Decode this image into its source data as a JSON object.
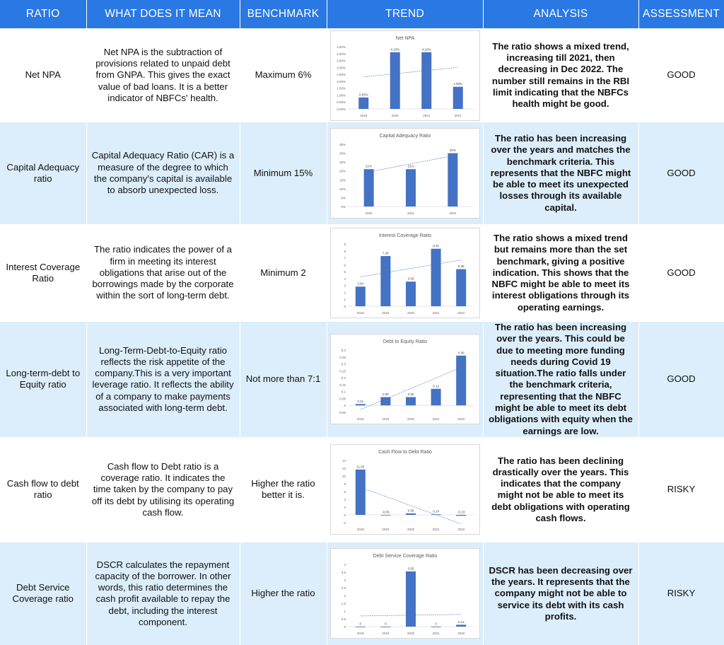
{
  "headers": [
    "RATIO",
    "WHAT DOES IT MEAN",
    "BENCHMARK",
    "TREND",
    "ANALYSIS",
    "ASSESSMENT"
  ],
  "rows": [
    {
      "ratio": "Net NPA",
      "meaning": "Net NPA is the subtraction of provisions related to unpaid debt from GNPA. This gives the exact value of bad loans. It is a better indicator of NBFCs' health.",
      "benchmark": "Maximum 6%",
      "analysis": "The ratio shows a mixed trend, increasing till 2021, then decreasing in Dec 2022. The number still remains in the RBI limit indicating that the NBFCs health might be good.",
      "assessment": "GOOD"
    },
    {
      "ratio": "Capital Adequacy ratio",
      "meaning": "Capital Adequacy Ratio (CAR) is a measure of the degree to which the company's capital is available to absorb unexpected loss.",
      "benchmark": "Minimum 15%",
      "analysis": "The ratio has been increasing over the years and matches the benchmark criteria. This represents that the NBFC might be able to meet its unexpected losses through its available capital.",
      "assessment": "GOOD"
    },
    {
      "ratio": "Interest Coverage Ratio",
      "meaning": "The ratio indicates the power of a firm in meeting its interest obligations that arise out of the borrowings made by the corporate within the sort of long-term debt.",
      "benchmark": "Minimum 2",
      "analysis": "The ratio shows a mixed trend but remains more than the set benchmark, giving a positive indication. This shows that the NBFC might be able to meet its interest obligations through its operating earnings.",
      "assessment": "GOOD"
    },
    {
      "ratio": "Long-term-debt to Equity ratio",
      "meaning": "Long-Term-Debt-to-Equity ratio reflects the risk appetite of the company.This is a very important leverage ratio. It reflects the ability of a company to make payments associated with long-term debt.",
      "benchmark": "Not more than 7:1",
      "analysis": "The ratio has been increasing over the years. This could be due to meeting more funding needs during Covid 19 situation.The ratio falls under the benchmark criteria, representing that the NBFC might be able to meet its debt obligations with equity when the earnings are low.",
      "assessment": "GOOD"
    },
    {
      "ratio": "Cash flow to debt ratio",
      "meaning": "Cash flow to Debt ratio is a coverage ratio. It indicates the time taken by the company to pay off its debt by utilising its operating cash flow.",
      "benchmark": "Higher the ratio better it is.",
      "analysis": "The ratio has been declining drastically over the years. This indicates that the company might not be able to meet its debt obligations with operating cash flows.",
      "assessment": "RISKY"
    },
    {
      "ratio": "Debt Service Coverage ratio",
      "meaning": "DSCR calculates the repayment capacity of the borrower. In other words, this ratio determines the cash profit available to repay the debt, including the interest component.",
      "benchmark": "Higher the ratio",
      "analysis": "DSCR has been decreasing over the years. It represents that the company might not be able to service its debt with its cash profits.",
      "assessment": "RISKY"
    }
  ],
  "colors": {
    "header_bg": "#2a78e4",
    "stripe_bg": "#dceefb",
    "bar": "#4472c4"
  },
  "chart_data": [
    {
      "type": "bar",
      "title": "Net NPA",
      "categories": [
        "2019",
        "2020",
        "2021",
        "2021"
      ],
      "values": [
        0.83,
        4.1,
        4.1,
        1.6
      ],
      "labels": [
        "0.83%",
        "4.10%",
        "4.10%",
        "1.60%"
      ],
      "yticks": [
        "0.00%",
        "0.50%",
        "1.00%",
        "1.50%",
        "2.00%",
        "2.50%",
        "3.00%",
        "3.50%",
        "4.00%",
        "4.50%"
      ],
      "ylim": [
        0,
        4.5
      ],
      "trendline": true
    },
    {
      "type": "bar",
      "title": "Capital Adequacy Ratio",
      "categories": [
        "2020",
        "2021",
        "2022"
      ],
      "values": [
        21,
        21,
        30
      ],
      "labels": [
        "21%",
        "21%",
        "30%"
      ],
      "yticks": [
        "0%",
        "5%",
        "10%",
        "15%",
        "20%",
        "25%",
        "30%",
        "35%"
      ],
      "ylim": [
        0,
        35
      ],
      "trendline": true
    },
    {
      "type": "bar",
      "title": "Interest Coverage Ratio",
      "categories": [
        "2018",
        "2019",
        "2020",
        "2021",
        "2022"
      ],
      "values": [
        2.84,
        7.26,
        3.56,
        8.31,
        5.36
      ],
      "labels": [
        "2.84",
        "7.26",
        "3.56",
        "8.31",
        "5.36"
      ],
      "yticks": [
        "0",
        "1",
        "2",
        "3",
        "4",
        "5",
        "6",
        "7",
        "8",
        "9"
      ],
      "ylim": [
        0,
        9
      ],
      "trendline": true
    },
    {
      "type": "bar",
      "title": "Debt to Equity Ratio",
      "categories": [
        "2018",
        "2019",
        "2020",
        "2021",
        "2022"
      ],
      "values": [
        0.01,
        0.06,
        0.06,
        0.12,
        0.36
      ],
      "labels": [
        "0.01",
        "0.06",
        "0.06",
        "0.12",
        "0.36"
      ],
      "yticks": [
        "-0.05",
        "0",
        "0.05",
        "0.1",
        "0.15",
        "0.2",
        "0.25",
        "0.3",
        "0.35",
        "0.4"
      ],
      "ylim": [
        -0.05,
        0.4
      ],
      "trendline": true
    },
    {
      "type": "bar",
      "title": "Cash Flow to Debt Ratio",
      "categories": [
        "2018",
        "2019",
        "2020",
        "2021",
        "2022"
      ],
      "values": [
        11.65,
        -0.05,
        0.39,
        0.14,
        -0.23
      ],
      "labels": [
        "11.65",
        "-0.05",
        "0.39",
        "0.14",
        "-0.23"
      ],
      "yticks": [
        "-2",
        "0",
        "2",
        "4",
        "6",
        "8",
        "10",
        "12",
        "14"
      ],
      "ylim": [
        -2,
        14
      ],
      "trendline": true
    },
    {
      "type": "bar",
      "title": "Debt Service Coverage Ratio",
      "categories": [
        "2018",
        "2019",
        "2020",
        "2021",
        "2022"
      ],
      "values": [
        0,
        0,
        3.55,
        0,
        0.12
      ],
      "labels": [
        "0",
        "0",
        "3.55",
        "0",
        "0.12"
      ],
      "yticks": [
        "0",
        "0.5",
        "1",
        "1.5",
        "2",
        "2.5",
        "3",
        "3.5",
        "4"
      ],
      "ylim": [
        0,
        4
      ],
      "trendline": true
    }
  ]
}
